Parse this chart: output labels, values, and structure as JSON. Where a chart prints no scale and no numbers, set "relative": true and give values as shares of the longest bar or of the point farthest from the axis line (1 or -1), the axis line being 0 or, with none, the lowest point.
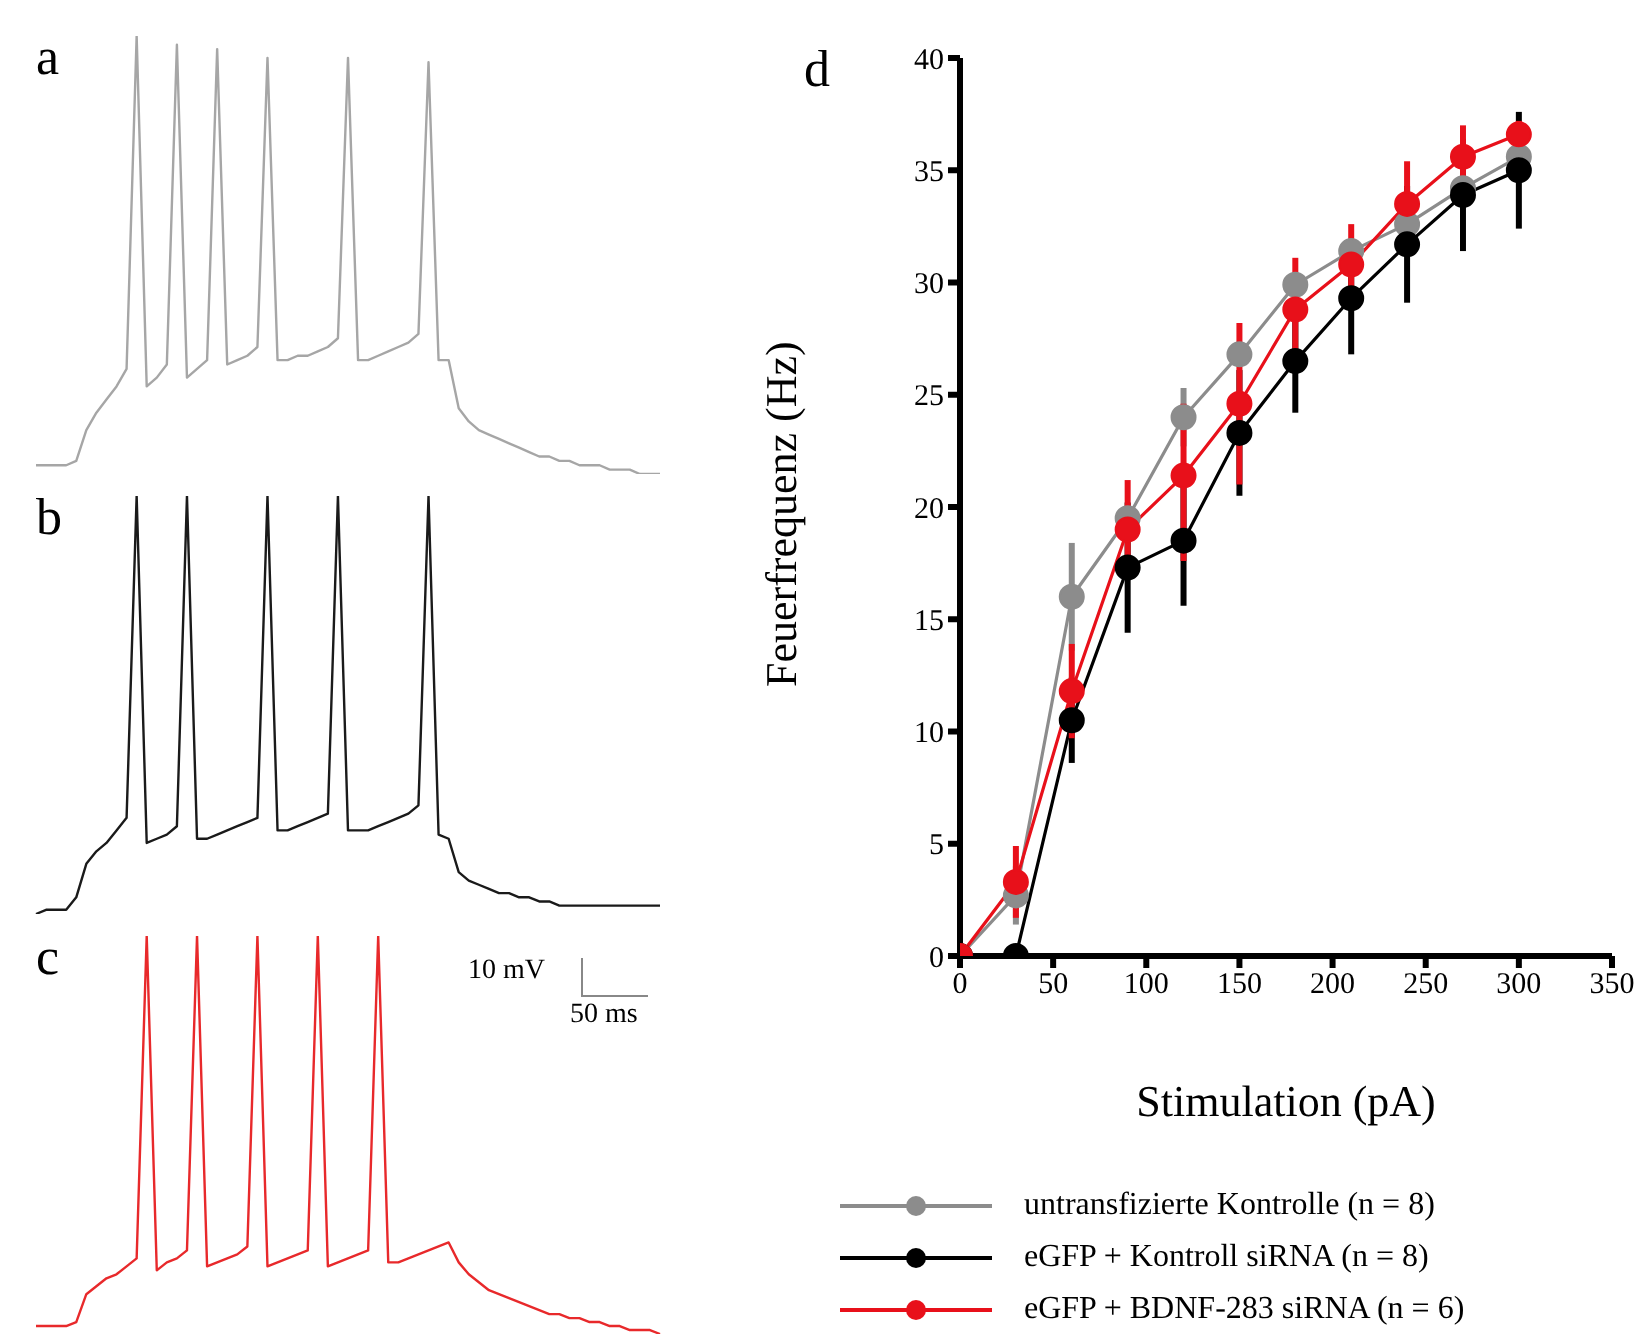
{
  "chart_data": [
    {
      "type": "line",
      "title": "a",
      "relative": true,
      "tick_labels": false,
      "categories": [
        null,
        null,
        null,
        null,
        null,
        null,
        null,
        null,
        null,
        null,
        null,
        null,
        null,
        null,
        null,
        null,
        null,
        null,
        null,
        null,
        null,
        null,
        null,
        null,
        null,
        null,
        null,
        null,
        null,
        null,
        null,
        null,
        null,
        null,
        null,
        null,
        null,
        null,
        null,
        null,
        null,
        null,
        null,
        null,
        null,
        null,
        null,
        null,
        null,
        null,
        null,
        null,
        null,
        null,
        null,
        null,
        null,
        null,
        null,
        null,
        null,
        null,
        null
      ],
      "series": [
        {
          "color": "#a6a6a6",
          "values": [
            0.02,
            0.02,
            0.02,
            0.02,
            0.03,
            0.1,
            0.14,
            0.17,
            0.2,
            0.24,
            1,
            0.2,
            0.22,
            0.25,
            0.98,
            0.22,
            0.24,
            0.26,
            0.97,
            0.25,
            0.26,
            0.27,
            0.29,
            0.95,
            0.26,
            0.26,
            0.27,
            0.27,
            0.28,
            0.29,
            0.31,
            0.95,
            0.26,
            0.26,
            0.27,
            0.28,
            0.29,
            0.3,
            0.32,
            0.94,
            0.26,
            0.26,
            0.15,
            0.12,
            0.1,
            0.09,
            0.08,
            0.07,
            0.06,
            0.05,
            0.04,
            0.04,
            0.03,
            0.03,
            0.02,
            0.02,
            0.02,
            0.01,
            0.01,
            0.01,
            0,
            0,
            0
          ]
        }
      ]
    },
    {
      "type": "line",
      "title": "b",
      "relative": true,
      "tick_labels": false,
      "categories": [
        null,
        null,
        null,
        null,
        null,
        null,
        null,
        null,
        null,
        null,
        null,
        null,
        null,
        null,
        null,
        null,
        null,
        null,
        null,
        null,
        null,
        null,
        null,
        null,
        null,
        null,
        null,
        null,
        null,
        null,
        null,
        null,
        null,
        null,
        null,
        null,
        null,
        null,
        null,
        null,
        null,
        null,
        null,
        null,
        null,
        null,
        null,
        null,
        null,
        null,
        null,
        null,
        null,
        null,
        null,
        null,
        null,
        null,
        null,
        null,
        null,
        null,
        null
      ],
      "series": [
        {
          "color": "#1a1a1a",
          "values": [
            0,
            0.01,
            0.01,
            0.01,
            0.04,
            0.12,
            0.15,
            0.17,
            0.2,
            0.23,
            1,
            0.17,
            0.18,
            0.19,
            0.21,
            1,
            0.18,
            0.18,
            0.19,
            0.2,
            0.21,
            0.22,
            0.23,
            1,
            0.2,
            0.2,
            0.21,
            0.22,
            0.23,
            0.24,
            1,
            0.2,
            0.2,
            0.2,
            0.21,
            0.22,
            0.23,
            0.24,
            0.26,
            1,
            0.19,
            0.18,
            0.1,
            0.08,
            0.07,
            0.06,
            0.05,
            0.05,
            0.04,
            0.04,
            0.03,
            0.03,
            0.02,
            0.02,
            0.02,
            0.02,
            0.02,
            0.02,
            0.02,
            0.02,
            0.02,
            0.02,
            0.02
          ]
        }
      ]
    },
    {
      "type": "line",
      "title": "c",
      "relative": true,
      "tick_labels": false,
      "annotations": [
        "10 mV",
        "50 ms"
      ],
      "categories": [
        null,
        null,
        null,
        null,
        null,
        null,
        null,
        null,
        null,
        null,
        null,
        null,
        null,
        null,
        null,
        null,
        null,
        null,
        null,
        null,
        null,
        null,
        null,
        null,
        null,
        null,
        null,
        null,
        null,
        null,
        null,
        null,
        null,
        null,
        null,
        null,
        null,
        null,
        null,
        null,
        null,
        null,
        null,
        null,
        null,
        null,
        null,
        null,
        null,
        null,
        null,
        null,
        null,
        null,
        null,
        null,
        null,
        null,
        null,
        null,
        null,
        null,
        null
      ],
      "series": [
        {
          "color": "#e8292b",
          "values": [
            0.02,
            0.02,
            0.02,
            0.02,
            0.03,
            0.1,
            0.12,
            0.14,
            0.15,
            0.17,
            0.19,
            1,
            0.16,
            0.18,
            0.19,
            0.21,
            1,
            0.17,
            0.18,
            0.19,
            0.2,
            0.22,
            1,
            0.17,
            0.18,
            0.19,
            0.2,
            0.21,
            1,
            0.17,
            0.18,
            0.19,
            0.2,
            0.21,
            1,
            0.18,
            0.18,
            0.19,
            0.2,
            0.21,
            0.22,
            0.23,
            0.18,
            0.15,
            0.13,
            0.11,
            0.1,
            0.09,
            0.08,
            0.07,
            0.06,
            0.05,
            0.05,
            0.04,
            0.04,
            0.03,
            0.03,
            0.02,
            0.02,
            0.01,
            0.01,
            0.01,
            0
          ]
        }
      ]
    },
    {
      "type": "line",
      "title": "d",
      "xlabel": "Stimulation (pA)",
      "ylabel": "Feuerfrequenz (Hz)",
      "x": [
        0,
        30,
        60,
        90,
        120,
        150,
        180,
        210,
        240,
        270,
        300
      ],
      "xlim": [
        0,
        350
      ],
      "xticks": [
        0,
        50,
        100,
        150,
        200,
        250,
        300,
        350
      ],
      "ylim": [
        0,
        40
      ],
      "yticks": [
        0,
        5,
        10,
        15,
        20,
        25,
        30,
        35,
        40
      ],
      "marker": "circle",
      "legend": "bottom",
      "series": [
        {
          "name": "untransfizierte Kontrolle (n = 8)",
          "color": "#8c8c8c",
          "values": [
            0,
            2.7,
            16.0,
            19.5,
            24.0,
            26.8,
            29.9,
            31.4,
            32.6,
            34.2,
            35.6
          ],
          "errors": [
            null,
            1.3,
            2.4,
            null,
            1.3,
            null,
            null,
            null,
            null,
            null,
            null
          ]
        },
        {
          "name": "eGFP + Kontroll siRNA (n = 8)",
          "color": "#000000",
          "values": [
            0,
            0,
            10.5,
            17.3,
            18.5,
            23.3,
            26.5,
            29.3,
            31.7,
            33.9,
            35.0
          ],
          "errors": [
            null,
            null,
            1.9,
            2.9,
            2.9,
            2.8,
            2.3,
            2.5,
            2.6,
            2.5,
            2.6
          ]
        },
        {
          "name": "eGFP + BDNF-283 siRNA (n = 6)",
          "color": "#e8101a",
          "values": [
            0,
            3.3,
            11.8,
            19.0,
            21.4,
            24.6,
            28.8,
            30.8,
            33.5,
            35.6,
            36.6
          ],
          "errors": [
            null,
            1.6,
            2.1,
            2.2,
            [
              17.6,
              24.6
            ],
            3.6,
            2.3,
            1.8,
            1.9,
            1.4,
            0.6
          ]
        }
      ]
    }
  ]
}
